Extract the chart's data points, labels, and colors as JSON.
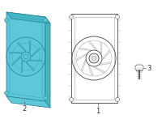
{
  "bg_color": "#ffffff",
  "cyan_fill": "#5ec8d8",
  "cyan_edge": "#2a8a9a",
  "cyan_edge2": "#3aadbd",
  "gray_edge": "#999999",
  "dark_edge": "#444444",
  "label_color": "#333333",
  "label1": "1",
  "label2": "2",
  "label3": "3",
  "figsize": [
    2.0,
    1.47
  ],
  "dpi": 100
}
